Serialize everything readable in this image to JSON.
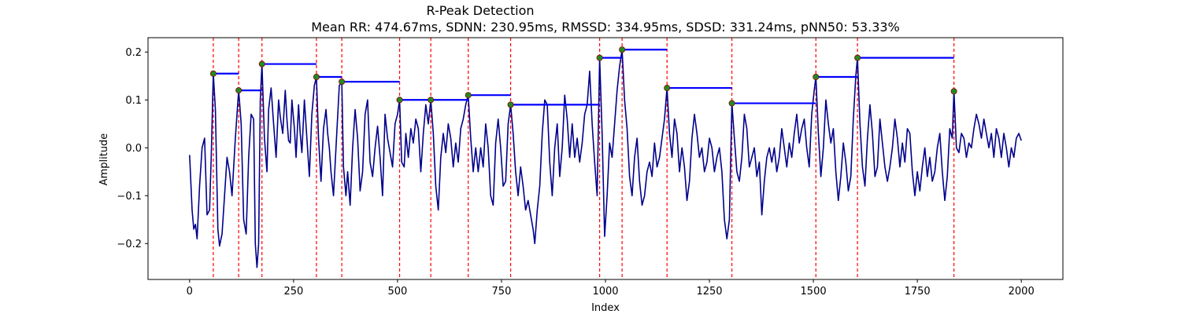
{
  "chart_data": {
    "type": "line",
    "title": "R-Peak Detection",
    "subtitle": "Mean RR: 474.67ms, SDNN: 230.95ms, RMSSD: 334.95ms, SDSD: 331.24ms, pNN50: 53.33%",
    "xlabel": "Index",
    "ylabel": "Amplitude",
    "xlim": [
      -100,
      2100
    ],
    "ylim": [
      -0.275,
      0.23
    ],
    "xticks": [
      0,
      250,
      500,
      750,
      1000,
      1250,
      1500,
      1750,
      2000
    ],
    "xtick_labels": [
      "0",
      "250",
      "500",
      "750",
      "1000",
      "1250",
      "1500",
      "1750",
      "2000"
    ],
    "yticks": [
      -0.2,
      -0.1,
      0.0,
      0.1,
      0.2
    ],
    "ytick_labels": [
      "−0.2",
      "−0.1",
      "0.0",
      "0.1",
      "0.2"
    ],
    "grid": false,
    "legend": "none",
    "colors": {
      "signal": "#00008b",
      "peak_lines": "#ff0000",
      "rr_intervals": "#0000ff",
      "peak_marker": "#228b22",
      "marker_edge": "#8b0000"
    },
    "signal": {
      "x_range": [
        0,
        2000
      ],
      "keypoints": [
        [
          0,
          -0.015
        ],
        [
          6,
          -0.13
        ],
        [
          10,
          -0.17
        ],
        [
          14,
          -0.16
        ],
        [
          18,
          -0.19
        ],
        [
          24,
          -0.08
        ],
        [
          30,
          0.0
        ],
        [
          36,
          0.02
        ],
        [
          42,
          -0.14
        ],
        [
          48,
          -0.13
        ],
        [
          52,
          -0.02
        ],
        [
          57,
          0.155
        ],
        [
          62,
          0.08
        ],
        [
          68,
          -0.17
        ],
        [
          72,
          -0.205
        ],
        [
          78,
          -0.18
        ],
        [
          84,
          -0.1
        ],
        [
          90,
          -0.02
        ],
        [
          96,
          -0.05
        ],
        [
          102,
          -0.1
        ],
        [
          110,
          0.02
        ],
        [
          118,
          0.12
        ],
        [
          124,
          0.05
        ],
        [
          130,
          -0.15
        ],
        [
          136,
          -0.18
        ],
        [
          142,
          -0.02
        ],
        [
          148,
          0.07
        ],
        [
          154,
          0.06
        ],
        [
          158,
          -0.2
        ],
        [
          162,
          -0.25
        ],
        [
          166,
          -0.2
        ],
        [
          170,
          0.1
        ],
        [
          174,
          0.175
        ],
        [
          180,
          0.02
        ],
        [
          186,
          -0.05
        ],
        [
          190,
          0.08
        ],
        [
          196,
          0.125
        ],
        [
          202,
          0.05
        ],
        [
          208,
          -0.02
        ],
        [
          214,
          0.1
        ],
        [
          218,
          0.065
        ],
        [
          224,
          0.03
        ],
        [
          230,
          0.12
        ],
        [
          234,
          0.06
        ],
        [
          238,
          0.015
        ],
        [
          242,
          0.01
        ],
        [
          246,
          0.1
        ],
        [
          252,
          0.04
        ],
        [
          256,
          -0.02
        ],
        [
          262,
          0.09
        ],
        [
          266,
          0.03
        ],
        [
          270,
          -0.01
        ],
        [
          276,
          0.1
        ],
        [
          282,
          0.02
        ],
        [
          288,
          -0.06
        ],
        [
          294,
          0.07
        ],
        [
          300,
          0.13
        ],
        [
          305,
          0.148
        ],
        [
          310,
          0.02
        ],
        [
          316,
          -0.07
        ],
        [
          322,
          0.04
        ],
        [
          328,
          0.08
        ],
        [
          332,
          0.03
        ],
        [
          336,
          0.0
        ],
        [
          340,
          -0.05
        ],
        [
          346,
          -0.1
        ],
        [
          352,
          0.0
        ],
        [
          360,
          0.13
        ],
        [
          366,
          0.138
        ],
        [
          370,
          -0.04
        ],
        [
          376,
          -0.1
        ],
        [
          380,
          -0.05
        ],
        [
          386,
          -0.12
        ],
        [
          392,
          0.0
        ],
        [
          398,
          0.08
        ],
        [
          404,
          0.02
        ],
        [
          410,
          -0.09
        ],
        [
          416,
          -0.05
        ],
        [
          422,
          0.07
        ],
        [
          428,
          0.1
        ],
        [
          434,
          -0.03
        ],
        [
          440,
          -0.06
        ],
        [
          446,
          0.0
        ],
        [
          452,
          0.045
        ],
        [
          458,
          -0.02
        ],
        [
          464,
          -0.1
        ],
        [
          470,
          0.07
        ],
        [
          476,
          0.02
        ],
        [
          482,
          -0.01
        ],
        [
          488,
          -0.04
        ],
        [
          494,
          0.05
        ],
        [
          500,
          0.07
        ],
        [
          505,
          0.1
        ],
        [
          510,
          -0.03
        ],
        [
          516,
          -0.04
        ],
        [
          520,
          0.03
        ],
        [
          526,
          -0.02
        ],
        [
          532,
          0.04
        ],
        [
          538,
          0.01
        ],
        [
          544,
          0.06
        ],
        [
          550,
          0.04
        ],
        [
          556,
          -0.05
        ],
        [
          562,
          0.03
        ],
        [
          568,
          0.09
        ],
        [
          574,
          0.05
        ],
        [
          580,
          0.1
        ],
        [
          586,
          0.03
        ],
        [
          592,
          -0.08
        ],
        [
          598,
          -0.13
        ],
        [
          604,
          -0.02
        ],
        [
          610,
          0.03
        ],
        [
          616,
          -0.01
        ],
        [
          622,
          0.05
        ],
        [
          628,
          0.02
        ],
        [
          634,
          -0.04
        ],
        [
          640,
          0.01
        ],
        [
          646,
          -0.03
        ],
        [
          652,
          0.04
        ],
        [
          658,
          0.06
        ],
        [
          664,
          0.09
        ],
        [
          670,
          0.11
        ],
        [
          676,
          0.02
        ],
        [
          682,
          -0.05
        ],
        [
          688,
          0.0
        ],
        [
          694,
          -0.05
        ],
        [
          700,
          0.0
        ],
        [
          706,
          -0.04
        ],
        [
          712,
          0.05
        ],
        [
          718,
          0.0
        ],
        [
          724,
          -0.1
        ],
        [
          730,
          -0.12
        ],
        [
          736,
          0.01
        ],
        [
          742,
          0.06
        ],
        [
          748,
          0.0
        ],
        [
          754,
          -0.08
        ],
        [
          760,
          -0.07
        ],
        [
          766,
          0.05
        ],
        [
          772,
          0.09
        ],
        [
          778,
          0.03
        ],
        [
          784,
          -0.05
        ],
        [
          790,
          -0.1
        ],
        [
          796,
          -0.04
        ],
        [
          802,
          -0.08
        ],
        [
          808,
          -0.13
        ],
        [
          814,
          -0.11
        ],
        [
          820,
          -0.14
        ],
        [
          826,
          -0.17
        ],
        [
          830,
          -0.2
        ],
        [
          836,
          -0.13
        ],
        [
          842,
          -0.08
        ],
        [
          848,
          0.03
        ],
        [
          854,
          0.1
        ],
        [
          860,
          0.09
        ],
        [
          866,
          -0.03
        ],
        [
          872,
          -0.1
        ],
        [
          878,
          0.0
        ],
        [
          884,
          0.05
        ],
        [
          890,
          -0.06
        ],
        [
          896,
          0.0
        ],
        [
          902,
          0.11
        ],
        [
          908,
          0.06
        ],
        [
          914,
          -0.02
        ],
        [
          920,
          0.05
        ],
        [
          926,
          -0.02
        ],
        [
          932,
          0.02
        ],
        [
          938,
          -0.03
        ],
        [
          944,
          0.01
        ],
        [
          950,
          0.07
        ],
        [
          956,
          0.09
        ],
        [
          962,
          0.16
        ],
        [
          968,
          0.05
        ],
        [
          974,
          -0.03
        ],
        [
          980,
          -0.1
        ],
        [
          986,
          0.188
        ],
        [
          992,
          0.03
        ],
        [
          998,
          -0.185
        ],
        [
          1004,
          -0.1
        ],
        [
          1010,
          0.01
        ],
        [
          1016,
          -0.02
        ],
        [
          1022,
          0.05
        ],
        [
          1028,
          0.12
        ],
        [
          1034,
          0.17
        ],
        [
          1040,
          0.205
        ],
        [
          1046,
          0.1
        ],
        [
          1052,
          0.04
        ],
        [
          1058,
          -0.06
        ],
        [
          1064,
          -0.1
        ],
        [
          1070,
          -0.02
        ],
        [
          1076,
          0.02
        ],
        [
          1082,
          -0.07
        ],
        [
          1088,
          -0.12
        ],
        [
          1094,
          -0.1
        ],
        [
          1100,
          -0.05
        ],
        [
          1106,
          -0.03
        ],
        [
          1112,
          -0.06
        ],
        [
          1118,
          0.01
        ],
        [
          1124,
          -0.04
        ],
        [
          1130,
          -0.02
        ],
        [
          1136,
          0.02
        ],
        [
          1142,
          0.06
        ],
        [
          1148,
          0.125
        ],
        [
          1154,
          0.03
        ],
        [
          1160,
          -0.02
        ],
        [
          1166,
          0.06
        ],
        [
          1172,
          0.03
        ],
        [
          1178,
          -0.05
        ],
        [
          1184,
          0.0
        ],
        [
          1190,
          -0.04
        ],
        [
          1196,
          -0.11
        ],
        [
          1202,
          -0.07
        ],
        [
          1208,
          0.02
        ],
        [
          1214,
          0.07
        ],
        [
          1220,
          0.03
        ],
        [
          1226,
          -0.02
        ],
        [
          1232,
          0.0
        ],
        [
          1238,
          -0.05
        ],
        [
          1244,
          -0.03
        ],
        [
          1250,
          0.02
        ],
        [
          1256,
          0.0
        ],
        [
          1262,
          -0.05
        ],
        [
          1268,
          -0.02
        ],
        [
          1274,
          0.0
        ],
        [
          1280,
          -0.05
        ],
        [
          1286,
          -0.15
        ],
        [
          1292,
          -0.19
        ],
        [
          1298,
          -0.15
        ],
        [
          1304,
          0.093
        ],
        [
          1310,
          0.02
        ],
        [
          1316,
          -0.05
        ],
        [
          1322,
          -0.07
        ],
        [
          1328,
          -0.02
        ],
        [
          1334,
          0.07
        ],
        [
          1340,
          0.04
        ],
        [
          1346,
          -0.04
        ],
        [
          1352,
          -0.02
        ],
        [
          1358,
          0.0
        ],
        [
          1364,
          -0.06
        ],
        [
          1370,
          -0.03
        ],
        [
          1376,
          -0.14
        ],
        [
          1382,
          -0.07
        ],
        [
          1388,
          -0.02
        ],
        [
          1394,
          0.0
        ],
        [
          1400,
          -0.03
        ],
        [
          1406,
          0.0
        ],
        [
          1412,
          -0.05
        ],
        [
          1418,
          -0.02
        ],
        [
          1424,
          0.04
        ],
        [
          1430,
          0.0
        ],
        [
          1436,
          -0.04
        ],
        [
          1442,
          0.01
        ],
        [
          1448,
          -0.02
        ],
        [
          1454,
          0.03
        ],
        [
          1460,
          0.07
        ],
        [
          1466,
          0.01
        ],
        [
          1472,
          0.04
        ],
        [
          1478,
          0.06
        ],
        [
          1484,
          0.0
        ],
        [
          1490,
          -0.04
        ],
        [
          1496,
          0.07
        ],
        [
          1502,
          0.12
        ],
        [
          1506,
          0.148
        ],
        [
          1512,
          0.03
        ],
        [
          1518,
          -0.06
        ],
        [
          1524,
          0.0
        ],
        [
          1530,
          0.1
        ],
        [
          1536,
          0.05
        ],
        [
          1542,
          0.01
        ],
        [
          1548,
          0.04
        ],
        [
          1554,
          -0.05
        ],
        [
          1560,
          -0.11
        ],
        [
          1566,
          -0.06
        ],
        [
          1572,
          0.01
        ],
        [
          1578,
          -0.03
        ],
        [
          1584,
          -0.09
        ],
        [
          1590,
          -0.06
        ],
        [
          1596,
          0.06
        ],
        [
          1602,
          0.15
        ],
        [
          1606,
          0.188
        ],
        [
          1612,
          0.05
        ],
        [
          1618,
          -0.04
        ],
        [
          1624,
          -0.08
        ],
        [
          1630,
          0.02
        ],
        [
          1636,
          0.09
        ],
        [
          1642,
          0.03
        ],
        [
          1648,
          -0.06
        ],
        [
          1654,
          -0.04
        ],
        [
          1660,
          0.06
        ],
        [
          1666,
          0.01
        ],
        [
          1672,
          -0.04
        ],
        [
          1678,
          -0.07
        ],
        [
          1684,
          -0.04
        ],
        [
          1690,
          0.0
        ],
        [
          1696,
          0.06
        ],
        [
          1702,
          0.02
        ],
        [
          1708,
          -0.04
        ],
        [
          1714,
          0.01
        ],
        [
          1720,
          -0.03
        ],
        [
          1726,
          0.04
        ],
        [
          1732,
          0.03
        ],
        [
          1738,
          -0.05
        ],
        [
          1744,
          -0.1
        ],
        [
          1750,
          -0.05
        ],
        [
          1756,
          -0.09
        ],
        [
          1762,
          -0.04
        ],
        [
          1768,
          0.0
        ],
        [
          1774,
          -0.06
        ],
        [
          1780,
          -0.02
        ],
        [
          1786,
          -0.07
        ],
        [
          1792,
          -0.05
        ],
        [
          1798,
          0.0
        ],
        [
          1804,
          0.03
        ],
        [
          1810,
          -0.05
        ],
        [
          1816,
          -0.11
        ],
        [
          1822,
          -0.06
        ],
        [
          1828,
          0.04
        ],
        [
          1834,
          0.02
        ],
        [
          1838,
          0.118
        ],
        [
          1844,
          0.0
        ],
        [
          1850,
          -0.01
        ],
        [
          1856,
          0.03
        ],
        [
          1862,
          0.02
        ],
        [
          1868,
          -0.02
        ],
        [
          1874,
          0.01
        ],
        [
          1880,
          0.0
        ],
        [
          1886,
          0.04
        ],
        [
          1892,
          0.07
        ],
        [
          1898,
          0.05
        ],
        [
          1904,
          0.02
        ],
        [
          1910,
          0.06
        ],
        [
          1916,
          0.03
        ],
        [
          1922,
          0.0
        ],
        [
          1928,
          0.03
        ],
        [
          1934,
          -0.02
        ],
        [
          1940,
          0.04
        ],
        [
          1946,
          0.02
        ],
        [
          1952,
          -0.02
        ],
        [
          1958,
          0.03
        ],
        [
          1964,
          0.0
        ],
        [
          1970,
          -0.04
        ],
        [
          1976,
          0.0
        ],
        [
          1982,
          -0.02
        ],
        [
          1988,
          0.02
        ],
        [
          1994,
          0.03
        ],
        [
          2000,
          0.015
        ]
      ]
    },
    "r_peaks": [
      {
        "x": 57,
        "y": 0.155
      },
      {
        "x": 118,
        "y": 0.12
      },
      {
        "x": 174,
        "y": 0.175
      },
      {
        "x": 305,
        "y": 0.148
      },
      {
        "x": 366,
        "y": 0.138
      },
      {
        "x": 505,
        "y": 0.1
      },
      {
        "x": 580,
        "y": 0.1
      },
      {
        "x": 670,
        "y": 0.11
      },
      {
        "x": 772,
        "y": 0.09
      },
      {
        "x": 986,
        "y": 0.188
      },
      {
        "x": 1040,
        "y": 0.205
      },
      {
        "x": 1148,
        "y": 0.125
      },
      {
        "x": 1304,
        "y": 0.093
      },
      {
        "x": 1506,
        "y": 0.148
      },
      {
        "x": 1606,
        "y": 0.188
      },
      {
        "x": 1838,
        "y": 0.118
      }
    ]
  }
}
